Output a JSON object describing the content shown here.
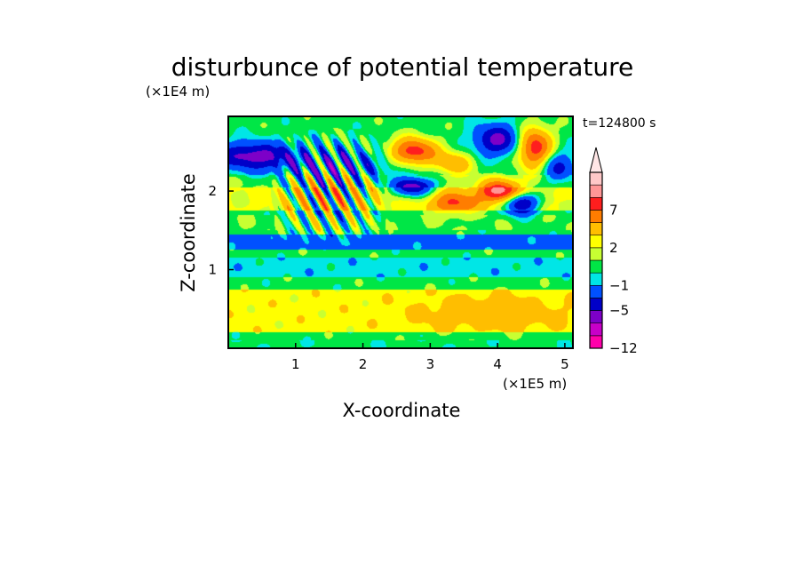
{
  "chart_data": {
    "type": "heatmap",
    "title": "disturbunce of potential temperature",
    "xlabel": "X-coordinate",
    "ylabel": "Z-coordinate",
    "x_unit": "(×1E5 m)",
    "y_unit": "(×1E4 m)",
    "time_label": "t=124800 s",
    "xlim": [
      0,
      5.12
    ],
    "ylim": [
      0,
      2.95
    ],
    "x_ticks": [
      1,
      2,
      3,
      4,
      5
    ],
    "y_ticks": [
      1,
      2
    ],
    "grid": false,
    "colorbar": {
      "placement": "right",
      "extend": "max",
      "levels": [
        -12,
        -9,
        -7,
        -5,
        -3,
        -1,
        0,
        1,
        2,
        3,
        5,
        7,
        9,
        12
      ],
      "colors": [
        "#ff00aa",
        "#c800c8",
        "#7d00c8",
        "#0000c8",
        "#0050ff",
        "#00e6e6",
        "#00e646",
        "#c8ff32",
        "#ffff00",
        "#ffbe00",
        "#ff7d00",
        "#ff1e1e",
        "#ff9696",
        "#ffc8c8"
      ],
      "extend_color": "#ffe6e6",
      "tick_values": [
        7,
        2,
        -1,
        -5,
        -12
      ],
      "tick_labels": [
        "7",
        "2",
        "−1",
        "−5",
        "−12"
      ]
    },
    "features": {
      "background_value": 0.5,
      "layers": [
        {
          "z": [
            0.0,
            0.1
          ],
          "value": 0.3
        },
        {
          "z": [
            0.2,
            0.75
          ],
          "value": 2.5
        },
        {
          "z": [
            0.9,
            1.15
          ],
          "value": -0.5
        },
        {
          "z": [
            1.25,
            1.45
          ],
          "value": -1.5
        },
        {
          "z": [
            1.5,
            1.7
          ],
          "value": 0.8
        },
        {
          "z": [
            1.75,
            2.05
          ],
          "value": 2.2
        },
        {
          "z": [
            2.05,
            2.2
          ],
          "value": 1.0
        }
      ],
      "cells": [
        {
          "x": 0.35,
          "z": 2.45,
          "rx": 0.6,
          "rz": 0.17,
          "amp": -6
        },
        {
          "x": 1.6,
          "z": 2.35,
          "rx": 1.0,
          "rz": 0.2,
          "amp": -3
        },
        {
          "x": 2.75,
          "z": 2.5,
          "rx": 0.35,
          "rz": 0.17,
          "amp": 8
        },
        {
          "x": 2.75,
          "z": 2.05,
          "rx": 0.3,
          "rz": 0.12,
          "amp": -7
        },
        {
          "x": 3.35,
          "z": 2.35,
          "rx": 0.3,
          "rz": 0.15,
          "amp": 4
        },
        {
          "x": 3.35,
          "z": 1.85,
          "rx": 0.35,
          "rz": 0.14,
          "amp": 5
        },
        {
          "x": 4.0,
          "z": 2.65,
          "rx": 0.35,
          "rz": 0.2,
          "amp": -6
        },
        {
          "x": 4.05,
          "z": 2.0,
          "rx": 0.32,
          "rz": 0.14,
          "amp": 8
        },
        {
          "x": 4.35,
          "z": 1.85,
          "rx": 0.25,
          "rz": 0.14,
          "amp": -8
        },
        {
          "x": 4.55,
          "z": 2.55,
          "rx": 0.25,
          "rz": 0.25,
          "amp": 8
        },
        {
          "x": 4.9,
          "z": 2.3,
          "rx": 0.25,
          "rz": 0.2,
          "amp": -4
        },
        {
          "x": 3.9,
          "z": 0.45,
          "rx": 1.0,
          "rz": 0.2,
          "amp": 2
        }
      ],
      "wave_train": {
        "x": [
          0.6,
          2.4
        ],
        "z": [
          1.3,
          2.95
        ],
        "amp": 6
      }
    }
  }
}
